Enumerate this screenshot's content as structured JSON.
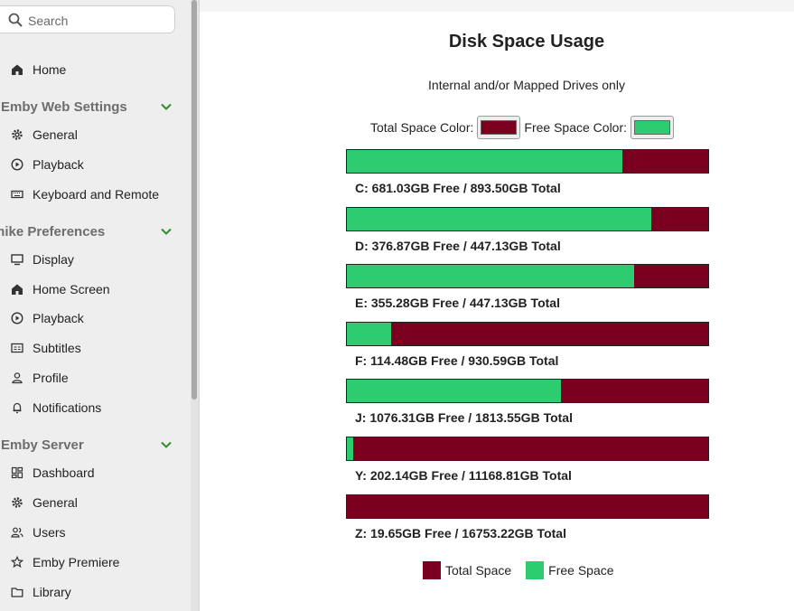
{
  "colors": {
    "total": "#7b0020",
    "free": "#2ecc71",
    "accent_green": "#2e8b2e"
  },
  "sidebar": {
    "search_placeholder": "Search",
    "home": {
      "label": "Home",
      "icon": "home-icon"
    },
    "sections": [
      {
        "title": "Emby Web Settings",
        "items": [
          {
            "label": "General",
            "icon": "gear-icon"
          },
          {
            "label": "Playback",
            "icon": "play-circle-icon"
          },
          {
            "label": "Keyboard and Remote",
            "icon": "keyboard-icon"
          }
        ]
      },
      {
        "title": "mike Preferences",
        "items": [
          {
            "label": "Display",
            "icon": "monitor-icon"
          },
          {
            "label": "Home Screen",
            "icon": "home-icon"
          },
          {
            "label": "Playback",
            "icon": "play-circle-icon"
          },
          {
            "label": "Subtitles",
            "icon": "subtitles-icon"
          },
          {
            "label": "Profile",
            "icon": "person-icon"
          },
          {
            "label": "Notifications",
            "icon": "bell-icon"
          }
        ]
      },
      {
        "title": "Emby Server",
        "items": [
          {
            "label": "Dashboard",
            "icon": "dashboard-icon"
          },
          {
            "label": "General",
            "icon": "gear-icon"
          },
          {
            "label": "Users",
            "icon": "users-icon"
          },
          {
            "label": "Emby Premiere",
            "icon": "star-icon"
          },
          {
            "label": "Library",
            "icon": "folder-icon"
          }
        ]
      }
    ]
  },
  "main": {
    "title": "Disk Space Usage",
    "subtitle": "Internal and/or Mapped Drives only",
    "total_color_label": "Total Space Color:",
    "free_color_label": "Free Space Color:",
    "legend": {
      "total": "Total Space",
      "free": "Free Space"
    }
  },
  "chart_data": {
    "type": "bar",
    "orientation": "horizontal-stacked",
    "categories": [
      "C:",
      "D:",
      "E:",
      "F:",
      "J:",
      "Y:",
      "Z:"
    ],
    "series": [
      {
        "name": "Free Space",
        "values": [
          681.03,
          376.87,
          355.28,
          114.48,
          1076.31,
          202.14,
          19.65
        ]
      },
      {
        "name": "Total Space",
        "values": [
          893.5,
          447.13,
          447.13,
          930.59,
          1813.55,
          11168.81,
          16753.22
        ]
      }
    ],
    "labels": [
      "C: 681.03GB Free / 893.50GB Total",
      "D: 376.87GB Free / 447.13GB Total",
      "E: 355.28GB Free / 447.13GB Total",
      "F: 114.48GB Free / 930.59GB Total",
      "J: 1076.31GB Free / 1813.55GB Total",
      "Y: 202.14GB Free / 11168.81GB Total",
      "Z: 19.65GB Free / 16753.22GB Total"
    ],
    "legend_position": "bottom"
  }
}
